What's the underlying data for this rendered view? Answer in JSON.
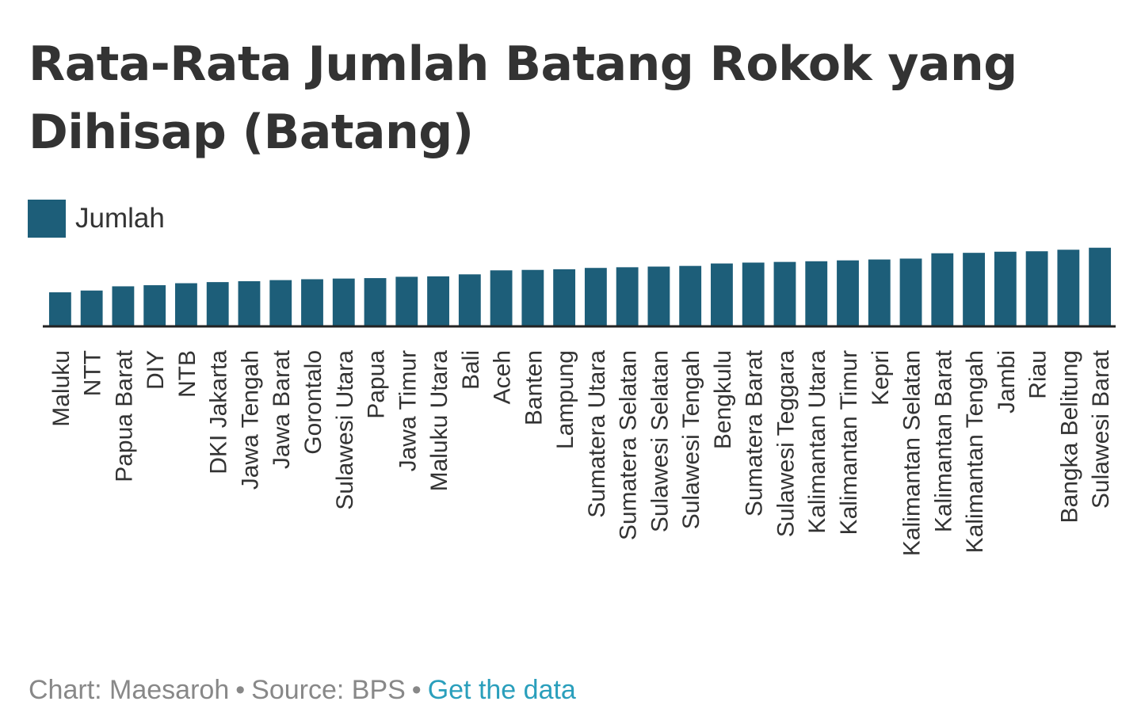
{
  "title": "Rata-Rata Jumlah Batang Rokok yang Dihisap (Batang)",
  "legend": {
    "label": "Jumlah"
  },
  "colors": {
    "bar": "#1d5e79",
    "axis": "#222222",
    "text": "#333333",
    "footer": "#888888",
    "link": "#2a9fbc"
  },
  "footer": {
    "chart_credit": "Chart: Maesaroh",
    "separator": "•",
    "source": "Source: BPS",
    "link_label": "Get the data"
  },
  "chart_data": {
    "type": "bar",
    "xlabel": "",
    "ylabel": "",
    "ylim": [
      0,
      40
    ],
    "grid": false,
    "legend_position": "top-left",
    "categories": [
      "Maluku",
      "NTT",
      "Papua Barat",
      "DIY",
      "NTB",
      "DKI Jakarta",
      "Jawa Tengah",
      "Jawa Barat",
      "Gorontalo",
      "Sulawesi Utara",
      "Papua",
      "Jawa Timur",
      "Maluku Utara",
      "Bali",
      "Aceh",
      "Banten",
      "Lampung",
      "Sumatera Utara",
      "Sumatera Selatan",
      "Sulawesi Selatan",
      "Sulawesi Tengah",
      "Bengkulu",
      "Sumatera Barat",
      "Sulawesi Teggara",
      "Kalimantan Utara",
      "Kalimantan Timur",
      "Kepri",
      "Kalimantan Selatan",
      "Kalimantan Barat",
      "Kalimantan Tengah",
      "Jambi",
      "Riau",
      "Bangka Belitung",
      "Sulawesi Barat"
    ],
    "series": [
      {
        "name": "Jumlah",
        "values": [
          15.0,
          15.8,
          17.7,
          18.2,
          19.1,
          19.6,
          20.0,
          20.5,
          20.9,
          21.2,
          21.4,
          22.0,
          22.2,
          23.1,
          24.9,
          25.1,
          25.4,
          26.0,
          26.3,
          26.6,
          26.9,
          28.0,
          28.4,
          28.7,
          29.0,
          29.4,
          29.8,
          30.2,
          32.6,
          32.8,
          33.3,
          33.5,
          34.2,
          35.1
        ]
      }
    ]
  }
}
